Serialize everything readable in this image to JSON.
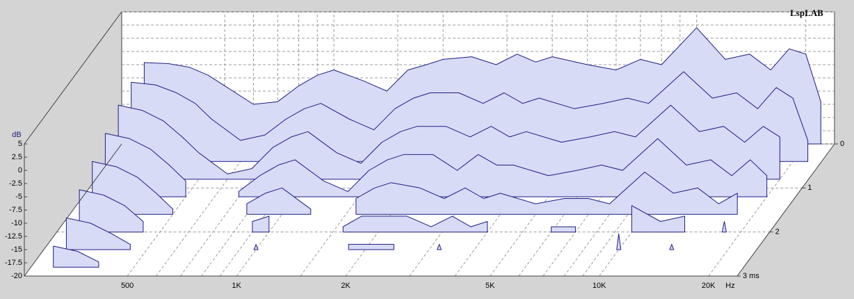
{
  "chart_data": {
    "type": "waterfall",
    "brand": "LspLAB",
    "y_label": "dB",
    "x_unit": "Hz",
    "fill": "#d8dbf6",
    "stroke": "#1c1c84",
    "log_x": true,
    "xlim": [
      260,
      24000
    ],
    "xticks": [
      500,
      {
        "value": 1000,
        "label": "1K"
      },
      {
        "value": 2000,
        "label": "2K"
      },
      {
        "value": 5000,
        "label": "5K"
      },
      {
        "value": 10000,
        "label": "10K"
      },
      {
        "value": 20000,
        "label": "20K"
      }
    ],
    "xminorticks": [
      600,
      700,
      800,
      900,
      1500,
      3000,
      4000,
      6000,
      7000,
      8000,
      9000
    ],
    "ylim": [
      -20,
      5
    ],
    "yticks": [
      5,
      2.5,
      0,
      -2.5,
      -5,
      -7.5,
      -10,
      -12.5,
      -15,
      -17.5,
      -20
    ],
    "zlim": [
      0,
      3
    ],
    "zticks": [
      0,
      1,
      2,
      {
        "value": 3,
        "label": "3 ms"
      }
    ],
    "x": [
      300,
      350,
      400,
      450,
      500,
      600,
      700,
      800,
      900,
      1000,
      1200,
      1400,
      1600,
      1800,
      2000,
      2400,
      2800,
      3200,
      3600,
      4000,
      5000,
      6000,
      7000,
      8000,
      10000,
      12000,
      14000,
      16000,
      18000,
      20000,
      22000
    ],
    "series": [
      {
        "time": 0,
        "values": [
          -4.6,
          -4.8,
          -5.5,
          -7,
          -9,
          -12.5,
          -12,
          -9,
          -7,
          -6,
          -8,
          -10,
          -6,
          -5,
          -4,
          -3.5,
          -5,
          -3,
          -4.5,
          -3.5,
          -5,
          -6,
          -4,
          -5,
          2,
          -4,
          -3,
          -6,
          -2,
          -3,
          -12
        ]
      },
      {
        "time": 0.4,
        "values": [
          -5,
          -5.5,
          -7,
          -9,
          -12,
          -16,
          -15,
          -12,
          -10,
          -9,
          -12,
          -14,
          -10,
          -8,
          -7,
          -7,
          -9,
          -7,
          -9,
          -8,
          -10,
          -9,
          -8,
          -9,
          -3,
          -8,
          -7,
          -10,
          -6,
          -8,
          -16
        ]
      },
      {
        "time": 0.8,
        "values": [
          -6,
          -7,
          -9,
          -12,
          -15,
          -19,
          -18,
          -14,
          -12,
          -11,
          -15,
          -17,
          -13,
          -11,
          -10,
          -10,
          -12,
          -10,
          -12,
          -11,
          -13,
          -12,
          -11,
          -12,
          -6,
          -11,
          -10,
          -13,
          -10,
          -12,
          null
        ]
      },
      {
        "time": 1.2,
        "values": [
          -8,
          -9,
          -11,
          -14,
          -17,
          null,
          -19,
          -16,
          -14,
          -13,
          -17,
          -19,
          -15,
          -13,
          -12,
          -12,
          -15,
          -12,
          -14,
          -14,
          -16,
          -15,
          -14,
          -15,
          -9,
          -14,
          -13,
          -16,
          -13,
          -16,
          null
        ]
      },
      {
        "time": 1.6,
        "values": [
          -10,
          -11,
          -13,
          -16,
          -19,
          null,
          null,
          -18,
          -16,
          -15,
          -19,
          null,
          -17,
          -15,
          -14,
          -15,
          -17,
          -15,
          -17,
          -16,
          -18,
          -17,
          -17,
          -18,
          -12,
          -16,
          -15,
          -18,
          -16,
          null,
          null
        ]
      },
      {
        "time": 2.0,
        "values": [
          -12,
          -13,
          -15,
          -18,
          null,
          null,
          null,
          null,
          -18,
          -17,
          null,
          null,
          -19,
          -17,
          -17,
          -17,
          -19,
          -17,
          -19,
          -18,
          null,
          -19,
          -19,
          null,
          -15,
          -18,
          -17,
          null,
          -18,
          null,
          null
        ]
      },
      {
        "time": 2.4,
        "values": [
          -14,
          -15,
          -17,
          -19,
          null,
          null,
          null,
          null,
          null,
          -19,
          null,
          null,
          null,
          -19,
          -19,
          -19,
          null,
          -19,
          null,
          null,
          null,
          null,
          null,
          null,
          -17,
          null,
          -19,
          null,
          null,
          null,
          null
        ]
      },
      {
        "time": 2.8,
        "values": [
          -16,
          -17,
          -19,
          null,
          null,
          null,
          null,
          null,
          null,
          null,
          null,
          null,
          null,
          null,
          null,
          null,
          null,
          null,
          null,
          null,
          null,
          null,
          null,
          null,
          null,
          null,
          null,
          null,
          null,
          null,
          null
        ]
      }
    ]
  }
}
